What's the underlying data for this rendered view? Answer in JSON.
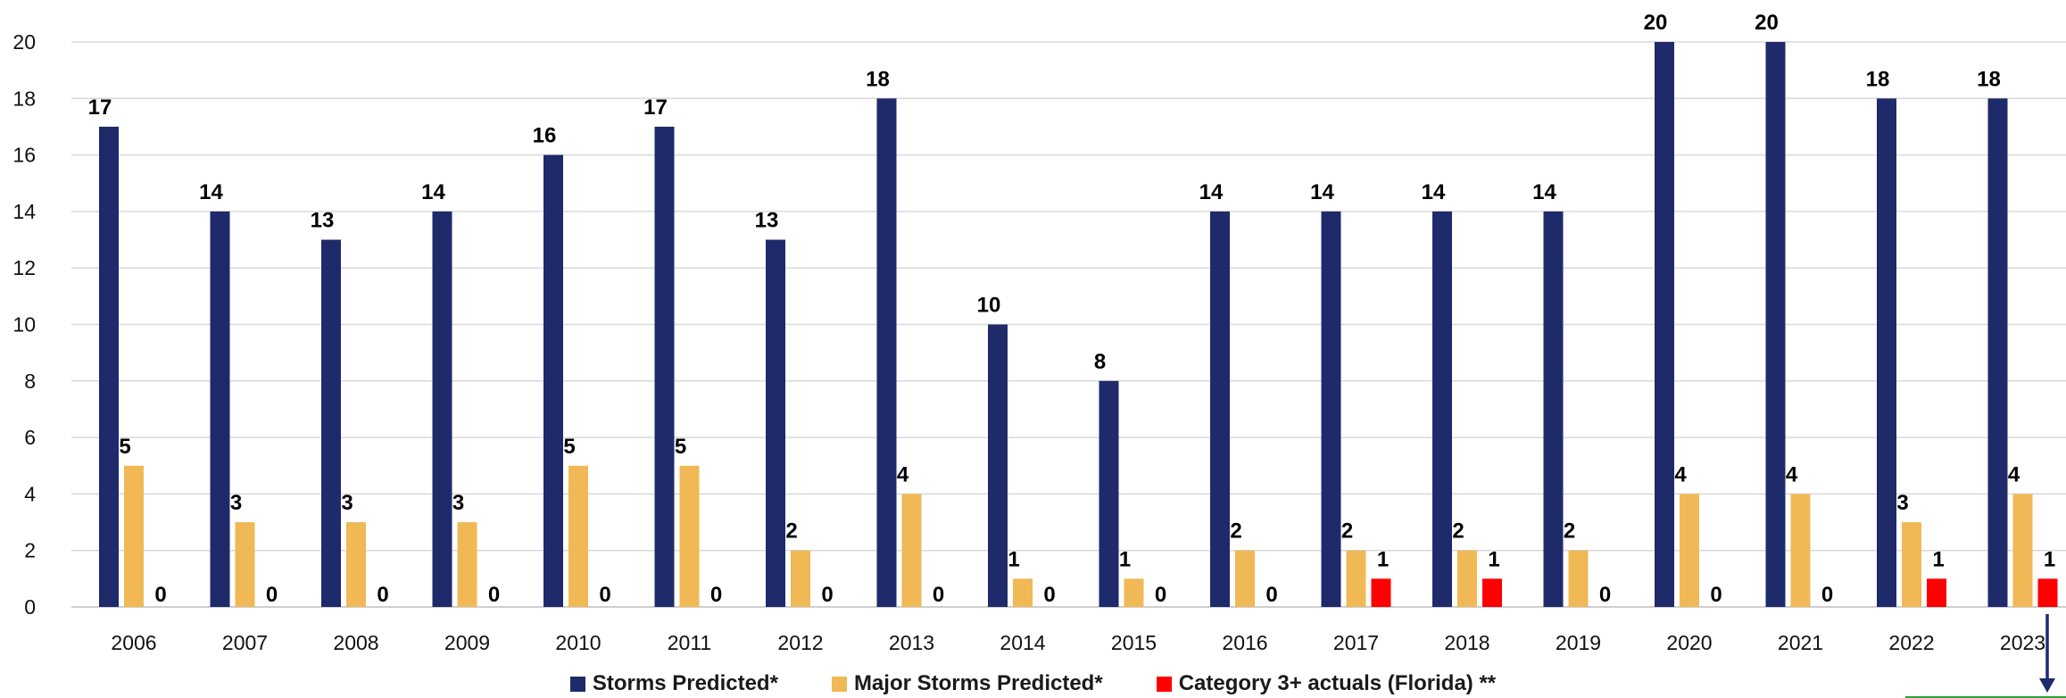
{
  "chart_data": {
    "type": "bar",
    "categories": [
      "2006",
      "2007",
      "2008",
      "2009",
      "2010",
      "2011",
      "2012",
      "2013",
      "2014",
      "2015",
      "2016",
      "2017",
      "2018",
      "2019",
      "2020",
      "2021",
      "2022",
      "2023"
    ],
    "series": [
      {
        "name": "Storms Predicted*",
        "color": "#1f2a6b",
        "values": [
          17,
          14,
          13,
          14,
          16,
          17,
          13,
          18,
          10,
          8,
          14,
          14,
          14,
          14,
          20,
          20,
          18,
          18
        ]
      },
      {
        "name": "Major Storms Predicted*",
        "color": "#f0b955",
        "values": [
          5,
          3,
          3,
          3,
          5,
          5,
          2,
          4,
          1,
          1,
          2,
          2,
          2,
          2,
          4,
          4,
          3,
          4
        ]
      },
      {
        "name": "Category 3+ actuals (Florida) **",
        "color": "#ff0000",
        "values": [
          0,
          0,
          0,
          0,
          0,
          0,
          0,
          0,
          0,
          0,
          0,
          1,
          1,
          0,
          0,
          0,
          1,
          1
        ]
      }
    ],
    "ylim": [
      0,
      20
    ],
    "yticks": [
      0,
      2,
      4,
      6,
      8,
      10,
      12,
      14,
      16,
      18,
      20
    ],
    "grid": true,
    "legend_position": "bottom-center",
    "data_labels": true,
    "arrow_color": "#1f2a6b",
    "accent_line_color": "#2e9e3e"
  }
}
